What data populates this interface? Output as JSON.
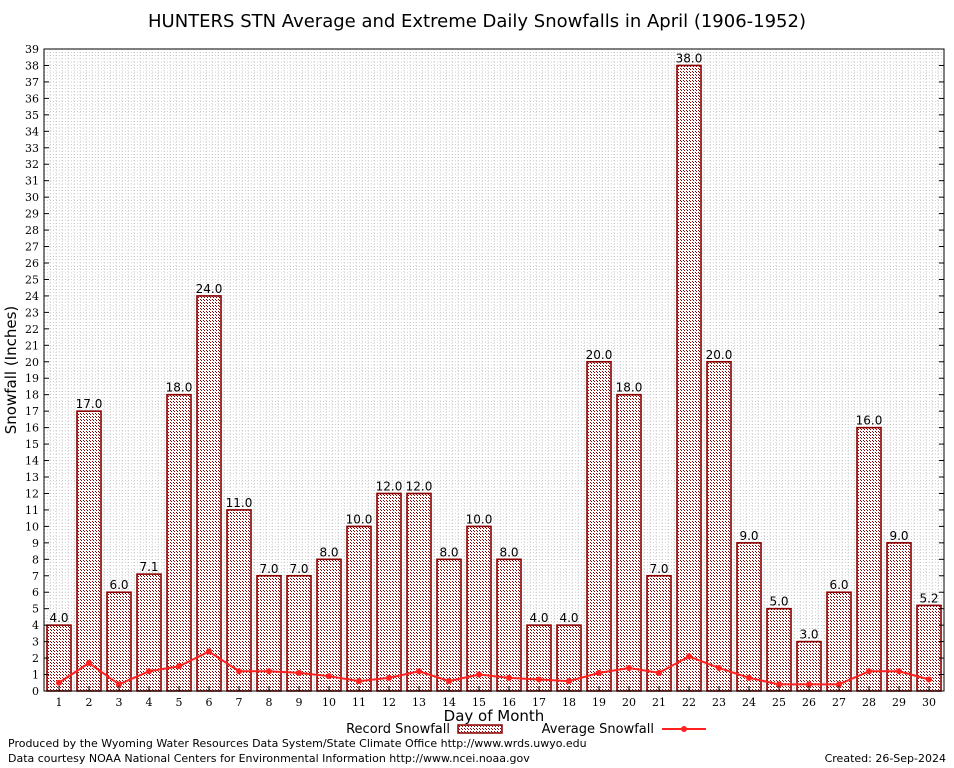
{
  "chart_data": {
    "type": "bar",
    "title": "HUNTERS STN Average and Extreme Daily Snowfalls in April (1906-1952)",
    "xlabel": "Day of Month",
    "ylabel": "Snowfall (Inches)",
    "ylim": [
      0,
      39
    ],
    "grid": true,
    "legend_position": "bottom-center",
    "categories": [
      "1",
      "2",
      "3",
      "4",
      "5",
      "6",
      "7",
      "8",
      "9",
      "10",
      "11",
      "12",
      "13",
      "14",
      "15",
      "16",
      "17",
      "18",
      "19",
      "20",
      "21",
      "22",
      "23",
      "24",
      "25",
      "26",
      "27",
      "28",
      "29",
      "30"
    ],
    "series": [
      {
        "name": "Record Snowfall",
        "type": "bar",
        "color": "#b22222",
        "values": [
          4.0,
          17.0,
          6.0,
          7.1,
          18.0,
          24.0,
          11.0,
          7.0,
          7.0,
          8.0,
          10.0,
          12.0,
          12.0,
          8.0,
          10.0,
          8.0,
          4.0,
          4.0,
          20.0,
          18.0,
          7.0,
          38.0,
          20.0,
          9.0,
          5.0,
          3.0,
          6.0,
          16.0,
          9.0,
          5.2
        ],
        "labels": [
          "4.0",
          "17.0",
          "6.0",
          "7.1",
          "18.0",
          "24.0",
          "11.0",
          "7.0",
          "7.0",
          "8.0",
          "10.0",
          "12.0",
          "12.0",
          "8.0",
          "10.0",
          "8.0",
          "4.0",
          "4.0",
          "20.0",
          "18.0",
          "7.0",
          "38.0",
          "20.0",
          "9.0",
          "5.0",
          "3.0",
          "6.0",
          "16.0",
          "9.0",
          "5.2"
        ]
      },
      {
        "name": "Average Snowfall",
        "type": "line",
        "color": "#ff2020",
        "values": [
          0.5,
          1.7,
          0.4,
          1.2,
          1.5,
          2.4,
          1.2,
          1.2,
          1.1,
          0.9,
          0.6,
          0.8,
          1.2,
          0.6,
          1.0,
          0.8,
          0.7,
          0.6,
          1.1,
          1.4,
          1.1,
          2.1,
          1.4,
          0.8,
          0.4,
          0.4,
          0.4,
          1.2,
          1.2,
          0.7
        ]
      }
    ]
  },
  "footer": {
    "produced_by": "Produced by the Wyoming Water Resources Data System/State Climate Office http://www.wrds.uwyo.edu",
    "courtesy": "Data courtesy NOAA National Centers for Environmental Information http://www.ncei.noaa.gov",
    "created": "Created:  26-Sep-2024"
  }
}
